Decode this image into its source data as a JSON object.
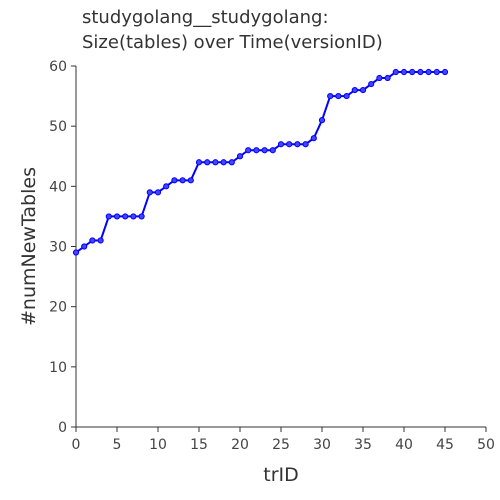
{
  "chart_data": {
    "type": "line",
    "title_lines": [
      "studygolang__studygolang:",
      "Size(tables) over Time(versionID)"
    ],
    "xlabel": "trID",
    "ylabel": "#numNewTables",
    "xlim": [
      0,
      50
    ],
    "ylim": [
      0,
      60
    ],
    "xticks": [
      0,
      5,
      10,
      15,
      20,
      25,
      30,
      35,
      40,
      45,
      50
    ],
    "yticks": [
      0,
      10,
      20,
      30,
      40,
      50,
      60
    ],
    "grid": false,
    "line_color": "#0000ff",
    "marker_fill": "#4444ff",
    "series": [
      {
        "x": [
          0,
          1,
          2,
          3,
          4,
          5,
          6,
          7,
          8,
          9,
          10,
          11,
          12,
          13,
          14,
          15,
          16,
          17,
          18,
          19,
          20,
          21,
          22,
          23,
          24,
          25,
          26,
          27,
          28,
          29,
          30,
          31,
          32,
          33,
          34,
          35,
          36,
          37,
          38,
          39,
          40,
          41,
          42,
          43,
          44,
          45
        ],
        "y": [
          29,
          30,
          31,
          31,
          35,
          35,
          35,
          35,
          35,
          39,
          39,
          40,
          41,
          41,
          41,
          44,
          44,
          44,
          44,
          44,
          45,
          46,
          46,
          46,
          46,
          47,
          47,
          47,
          47,
          48,
          51,
          55,
          55,
          55,
          56,
          56,
          57,
          58,
          58,
          59,
          59,
          59,
          59,
          59,
          59,
          59
        ]
      }
    ]
  }
}
